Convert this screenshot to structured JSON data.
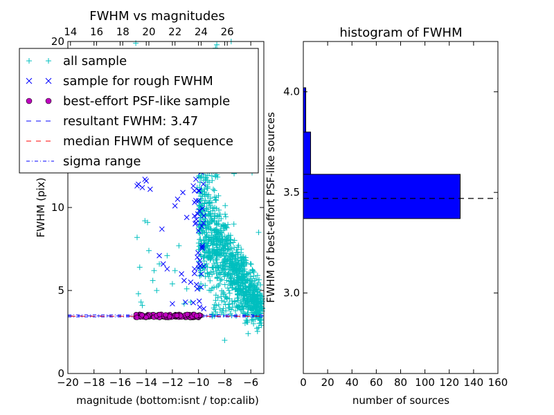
{
  "chart_data": [
    {
      "type": "scatter",
      "title": "FWHM vs magnitudes",
      "xlabel": "magnitude (bottom:isnt / top:calib)",
      "ylabel": "FWHM (pix)",
      "xlim": [
        -20,
        -5
      ],
      "ylim": [
        0,
        20
      ],
      "xticks": [
        -20,
        -18,
        -16,
        -14,
        -12,
        -10,
        -8,
        -6
      ],
      "xtick_labels": [
        "−20",
        "−18",
        "−16",
        "−14",
        "−12",
        "−10",
        "−8",
        "−6"
      ],
      "yticks": [
        0,
        5,
        10,
        20
      ],
      "ytick_labels": [
        "0",
        "5",
        "10",
        "20"
      ],
      "top_xticks": [
        14,
        16,
        18,
        20,
        22,
        24,
        26
      ],
      "top_xtick_labels": [
        "14",
        "16",
        "18",
        "20",
        "22",
        "24",
        "26"
      ],
      "top_offset": 33.8,
      "grid": false,
      "legend_position": "top-left",
      "series": [
        {
          "name": "all sample",
          "marker": "+",
          "color": "#00bfbf",
          "points": [
            [
              -14.7,
              8.2
            ],
            [
              -14.5,
              6.4
            ],
            [
              -14.6,
              4.8
            ],
            [
              -14.4,
              4.3
            ],
            [
              -14.1,
              9.2
            ],
            [
              -13.9,
              9.1
            ],
            [
              -13.8,
              7.4
            ],
            [
              -13.4,
              6.2
            ],
            [
              -13.5,
              5.6
            ],
            [
              -13.0,
              6.6
            ],
            [
              -12.4,
              7.1
            ],
            [
              -12.2,
              12.9
            ],
            [
              -12.0,
              5.4
            ],
            [
              -11.5,
              7.7
            ],
            [
              -11.1,
              4.2
            ],
            [
              -10.9,
              5.1
            ],
            [
              -13.6,
              13.0
            ],
            [
              -12.7,
              13.1
            ],
            [
              -14.3,
              4.1
            ],
            [
              -13.2,
              5.0
            ],
            [
              -11.8,
              6.2
            ],
            [
              -10.6,
              4.3
            ],
            [
              -10.3,
              13.8
            ],
            [
              -10.1,
              11.2
            ],
            [
              -9.9,
              13.2
            ],
            [
              -9.6,
              12.0
            ],
            [
              -9.5,
              9.0
            ],
            [
              -9.3,
              17.6
            ],
            [
              -8.7,
              19.6
            ],
            [
              -8.6,
              19.8
            ],
            [
              -7.5,
              20.0
            ],
            [
              -7.0,
              19.0
            ],
            [
              -6.7,
              15.3
            ],
            [
              -6.5,
              18.3
            ],
            [
              -6.2,
              17.3
            ],
            [
              -5.9,
              12.1
            ],
            [
              -5.4,
              8.5
            ],
            [
              -5.7,
              5.0
            ],
            [
              -5.5,
              3.7
            ],
            [
              -8.0,
              2.0
            ],
            [
              -6.2,
              2.4
            ],
            [
              -5.7,
              4.3
            ],
            [
              -14.8,
              19.9
            ],
            [
              -13.9,
              19.2
            ]
          ]
        },
        {
          "name": "sample for rough FWHM",
          "marker": "x",
          "color": "#0000ff",
          "points": [
            [
              -14.7,
              11.3
            ],
            [
              -14.6,
              11.4
            ],
            [
              -14.0,
              11.6
            ],
            [
              -13.7,
              11.1
            ],
            [
              -13.0,
              7.1
            ],
            [
              -12.7,
              6.6
            ],
            [
              -12.4,
              6.3
            ],
            [
              -11.3,
              6.0
            ],
            [
              -11.1,
              5.6
            ],
            [
              -11.0,
              4.3
            ],
            [
              -12.0,
              4.2
            ],
            [
              -12.8,
              8.7
            ],
            [
              -11.8,
              10.1
            ],
            [
              -11.6,
              10.5
            ],
            [
              -11.2,
              10.9
            ],
            [
              -10.9,
              9.4
            ],
            [
              -10.5,
              13.0
            ],
            [
              -10.4,
              11.3
            ],
            [
              -10.3,
              10.3
            ],
            [
              -10.2,
              11.7
            ],
            [
              -10.0,
              10.4
            ],
            [
              -9.9,
              13.4
            ],
            [
              -9.8,
              16.0
            ],
            [
              -9.7,
              12.5
            ],
            [
              -9.6,
              9.5
            ],
            [
              -10.6,
              5.5
            ],
            [
              -10.3,
              6.3
            ],
            [
              -10.1,
              5.1
            ],
            [
              -9.9,
              4.0
            ],
            [
              -9.9,
              6.8
            ],
            [
              -9.8,
              5.2
            ],
            [
              -10.0,
              8.6
            ],
            [
              -9.7,
              7.7
            ],
            [
              -9.6,
              3.9
            ],
            [
              -14.1,
              11.7
            ],
            [
              -14.3,
              11.2
            ]
          ]
        },
        {
          "name": "best-effort PSF-like sample",
          "marker": "o",
          "color": "#bf00bf",
          "xrange": [
            -14.8,
            -9.8
          ],
          "y_center": 3.47,
          "y_jitter": 0.1
        },
        {
          "name": "resultant FWHM: 3.47",
          "style": "dashed",
          "color": "#0000ff",
          "y": 3.47
        },
        {
          "name": "median FHWM of sequence",
          "style": "dashed",
          "color": "#ff0000",
          "y": 3.47
        },
        {
          "name": "sigma range",
          "style": "dashdot",
          "color": "#0000ff",
          "y": [
            3.41,
            3.53
          ]
        }
      ]
    },
    {
      "type": "histogram",
      "orientation": "horizontal",
      "title": "histogram of FWHM",
      "xlabel": "number of sources",
      "ylabel": "FWHM of best-effort PSF-like sources",
      "xlim": [
        0,
        160
      ],
      "ylim": [
        2.6,
        4.25
      ],
      "xticks": [
        0,
        20,
        40,
        60,
        80,
        100,
        120,
        140,
        160
      ],
      "yticks": [
        3.0,
        3.5,
        4.0
      ],
      "ytick_labels": [
        "3.0",
        "3.5",
        "4.0"
      ],
      "bar_color": "#0000ff",
      "bins": [
        {
          "y0": 3.37,
          "y1": 3.59,
          "count": 129
        },
        {
          "y0": 3.59,
          "y1": 3.8,
          "count": 6
        },
        {
          "y0": 3.8,
          "y1": 4.02,
          "count": 2
        }
      ],
      "reference_line": {
        "y": 3.47,
        "style": "dashed",
        "color": "#000000"
      }
    }
  ]
}
